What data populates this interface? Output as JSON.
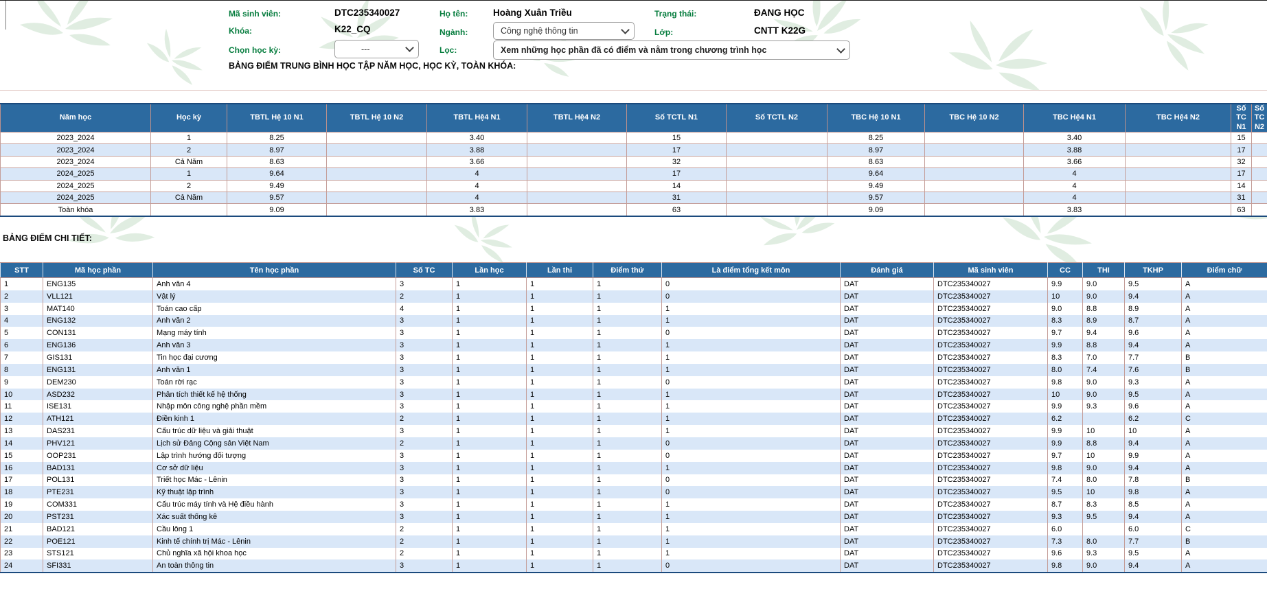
{
  "student": {
    "ma_sinh_vien_label": "Mã sinh viên:",
    "ma_sinh_vien": "DTC235340027",
    "ho_ten_label": "Họ tên:",
    "ho_ten": "Hoàng Xuân Triều",
    "trang_thai_label": "Trạng thái:",
    "trang_thai": "ĐANG HỌC",
    "khoa_label": "Khóa:",
    "khoa": "K22_CQ",
    "nganh_label": "Ngành:",
    "nganh_selected": "Công nghệ thông tin",
    "lop_label": "Lớp:",
    "lop": "CNTT K22G",
    "chon_hoc_ky_label": "Chọn học kỳ:",
    "hoc_ky_selected": "---",
    "loc_label": "Lọc:",
    "loc_selected": "Xem những học phần đã có điểm và nằm trong chương trình học"
  },
  "summary_section": {
    "title": "BẢNG ĐIỂM TRUNG BÌNH HỌC TẬP NĂM HỌC, HỌC KỲ, TOÀN KHÓA:",
    "columns": [
      "Năm học",
      "Học kỳ",
      "TBTL Hệ 10 N1",
      "TBTL Hệ 10 N2",
      "TBTL Hệ4 N1",
      "TBTL Hệ4 N2",
      "Số TCTL N1",
      "Số TCTL N2",
      "TBC Hệ 10 N1",
      "TBC Hệ 10 N2",
      "TBC Hệ4 N1",
      "TBC Hệ4 N2",
      "Số TC N1",
      "Số TC N2"
    ],
    "rows": [
      [
        "2023_2024",
        "1",
        "8.25",
        "",
        "3.40",
        "",
        "15",
        "",
        "8.25",
        "",
        "3.40",
        "",
        "15",
        ""
      ],
      [
        "2023_2024",
        "2",
        "8.97",
        "",
        "3.88",
        "",
        "17",
        "",
        "8.97",
        "",
        "3.88",
        "",
        "17",
        ""
      ],
      [
        "2023_2024",
        "Cả Năm",
        "8.63",
        "",
        "3.66",
        "",
        "32",
        "",
        "8.63",
        "",
        "3.66",
        "",
        "32",
        ""
      ],
      [
        "2024_2025",
        "1",
        "9.64",
        "",
        "4",
        "",
        "17",
        "",
        "9.64",
        "",
        "4",
        "",
        "17",
        ""
      ],
      [
        "2024_2025",
        "2",
        "9.49",
        "",
        "4",
        "",
        "14",
        "",
        "9.49",
        "",
        "4",
        "",
        "14",
        ""
      ],
      [
        "2024_2025",
        "Cả Năm",
        "9.57",
        "",
        "4",
        "",
        "31",
        "",
        "9.57",
        "",
        "4",
        "",
        "31",
        ""
      ],
      [
        "Toàn khóa",
        "",
        "9.09",
        "",
        "3.83",
        "",
        "63",
        "",
        "9.09",
        "",
        "3.83",
        "",
        "63",
        ""
      ]
    ]
  },
  "detail_section": {
    "title": "BẢNG ĐIỂM CHI TIẾT:",
    "columns": [
      "STT",
      "Mã học phần",
      "Tên học phần",
      "Số TC",
      "Lần học",
      "Lần thi",
      "Điểm thứ",
      "Là điểm tổng kết môn",
      "Đánh giá",
      "Mã sinh viên",
      "CC",
      "THI",
      "TKHP",
      "Điểm chữ"
    ],
    "rows": [
      [
        "1",
        "ENG135",
        "Anh văn 4",
        "3",
        "1",
        "1",
        "1",
        "0",
        "DAT",
        "DTC235340027",
        "9.9",
        "9.0",
        "9.5",
        "A"
      ],
      [
        "2",
        "VLL121",
        "Vật lý",
        "2",
        "1",
        "1",
        "1",
        "0",
        "DAT",
        "DTC235340027",
        "10",
        "9.0",
        "9.4",
        "A"
      ],
      [
        "3",
        "MAT140",
        "Toán cao cấp",
        "4",
        "1",
        "1",
        "1",
        "1",
        "DAT",
        "DTC235340027",
        "9.0",
        "8.8",
        "8.9",
        "A"
      ],
      [
        "4",
        "ENG132",
        "Anh văn 2",
        "3",
        "1",
        "1",
        "1",
        "1",
        "DAT",
        "DTC235340027",
        "8.3",
        "8.9",
        "8.7",
        "A"
      ],
      [
        "5",
        "CON131",
        "Mạng máy tính",
        "3",
        "1",
        "1",
        "1",
        "0",
        "DAT",
        "DTC235340027",
        "9.7",
        "9.4",
        "9.6",
        "A"
      ],
      [
        "6",
        "ENG136",
        "Anh văn 3",
        "3",
        "1",
        "1",
        "1",
        "1",
        "DAT",
        "DTC235340027",
        "9.9",
        "8.8",
        "9.4",
        "A"
      ],
      [
        "7",
        "GIS131",
        "Tin học đại cương",
        "3",
        "1",
        "1",
        "1",
        "1",
        "DAT",
        "DTC235340027",
        "8.3",
        "7.0",
        "7.7",
        "B"
      ],
      [
        "8",
        "ENG131",
        "Anh văn 1",
        "3",
        "1",
        "1",
        "1",
        "1",
        "DAT",
        "DTC235340027",
        "8.0",
        "7.4",
        "7.6",
        "B"
      ],
      [
        "9",
        "DEM230",
        "Toán rời rạc",
        "3",
        "1",
        "1",
        "1",
        "0",
        "DAT",
        "DTC235340027",
        "9.8",
        "9.0",
        "9.3",
        "A"
      ],
      [
        "10",
        "ASD232",
        "Phân tích thiết kế hệ thống",
        "3",
        "1",
        "1",
        "1",
        "1",
        "DAT",
        "DTC235340027",
        "10",
        "9.0",
        "9.5",
        "A"
      ],
      [
        "11",
        "ISE131",
        "Nhập môn công nghệ phần mềm",
        "3",
        "1",
        "1",
        "1",
        "1",
        "DAT",
        "DTC235340027",
        "9.9",
        "9.3",
        "9.6",
        "A"
      ],
      [
        "12",
        "ATH121",
        "Điền kinh 1",
        "2",
        "1",
        "1",
        "1",
        "1",
        "DAT",
        "DTC235340027",
        "6.2",
        "",
        "6.2",
        "C"
      ],
      [
        "13",
        "DAS231",
        "Cấu trúc dữ liệu và giải thuật",
        "3",
        "1",
        "1",
        "1",
        "1",
        "DAT",
        "DTC235340027",
        "9.9",
        "10",
        "10",
        "A"
      ],
      [
        "14",
        "PHV121",
        "Lịch sử Đảng Cộng sản Việt Nam",
        "2",
        "1",
        "1",
        "1",
        "0",
        "DAT",
        "DTC235340027",
        "9.9",
        "8.8",
        "9.4",
        "A"
      ],
      [
        "15",
        "OOP231",
        "Lập trình hướng đối tượng",
        "3",
        "1",
        "1",
        "1",
        "0",
        "DAT",
        "DTC235340027",
        "9.7",
        "10",
        "9.9",
        "A"
      ],
      [
        "16",
        "BAD131",
        "Cơ sở dữ liệu",
        "3",
        "1",
        "1",
        "1",
        "1",
        "DAT",
        "DTC235340027",
        "9.8",
        "9.0",
        "9.4",
        "A"
      ],
      [
        "17",
        "POL131",
        "Triết học Mác - Lênin",
        "3",
        "1",
        "1",
        "1",
        "0",
        "DAT",
        "DTC235340027",
        "7.4",
        "8.0",
        "7.8",
        "B"
      ],
      [
        "18",
        "PTE231",
        "Kỹ thuật lập trình",
        "3",
        "1",
        "1",
        "1",
        "0",
        "DAT",
        "DTC235340027",
        "9.5",
        "10",
        "9.8",
        "A"
      ],
      [
        "19",
        "COM331",
        "Cấu trúc máy tính và Hệ điều hành",
        "3",
        "1",
        "1",
        "1",
        "1",
        "DAT",
        "DTC235340027",
        "8.7",
        "8.3",
        "8.5",
        "A"
      ],
      [
        "20",
        "PST231",
        "Xác suất thống kê",
        "3",
        "1",
        "1",
        "1",
        "1",
        "DAT",
        "DTC235340027",
        "9.3",
        "9.5",
        "9.4",
        "A"
      ],
      [
        "21",
        "BAD121",
        "Cầu lông 1",
        "2",
        "1",
        "1",
        "1",
        "1",
        "DAT",
        "DTC235340027",
        "6.0",
        "",
        "6.0",
        "C"
      ],
      [
        "22",
        "POE121",
        "Kinh tế chính trị Mác - Lênin",
        "2",
        "1",
        "1",
        "1",
        "1",
        "DAT",
        "DTC235340027",
        "7.3",
        "8.0",
        "7.7",
        "B"
      ],
      [
        "23",
        "STS121",
        "Chủ nghĩa xã hội khoa học",
        "2",
        "1",
        "1",
        "1",
        "1",
        "DAT",
        "DTC235340027",
        "9.6",
        "9.3",
        "9.5",
        "A"
      ],
      [
        "24",
        "SFI331",
        "An toàn thông tin",
        "3",
        "1",
        "1",
        "1",
        "0",
        "DAT",
        "DTC235340027",
        "9.8",
        "9.0",
        "9.4",
        "A"
      ]
    ]
  },
  "colors": {
    "table_header_blue": "#2c6aa0",
    "row_alt_blue": "#d9e7f8",
    "cell_border_rose": "#c49d98",
    "outer_border_navy": "#1b4a7d",
    "label_green": "#067d3e",
    "watermark_green": "#bcd9bd"
  }
}
